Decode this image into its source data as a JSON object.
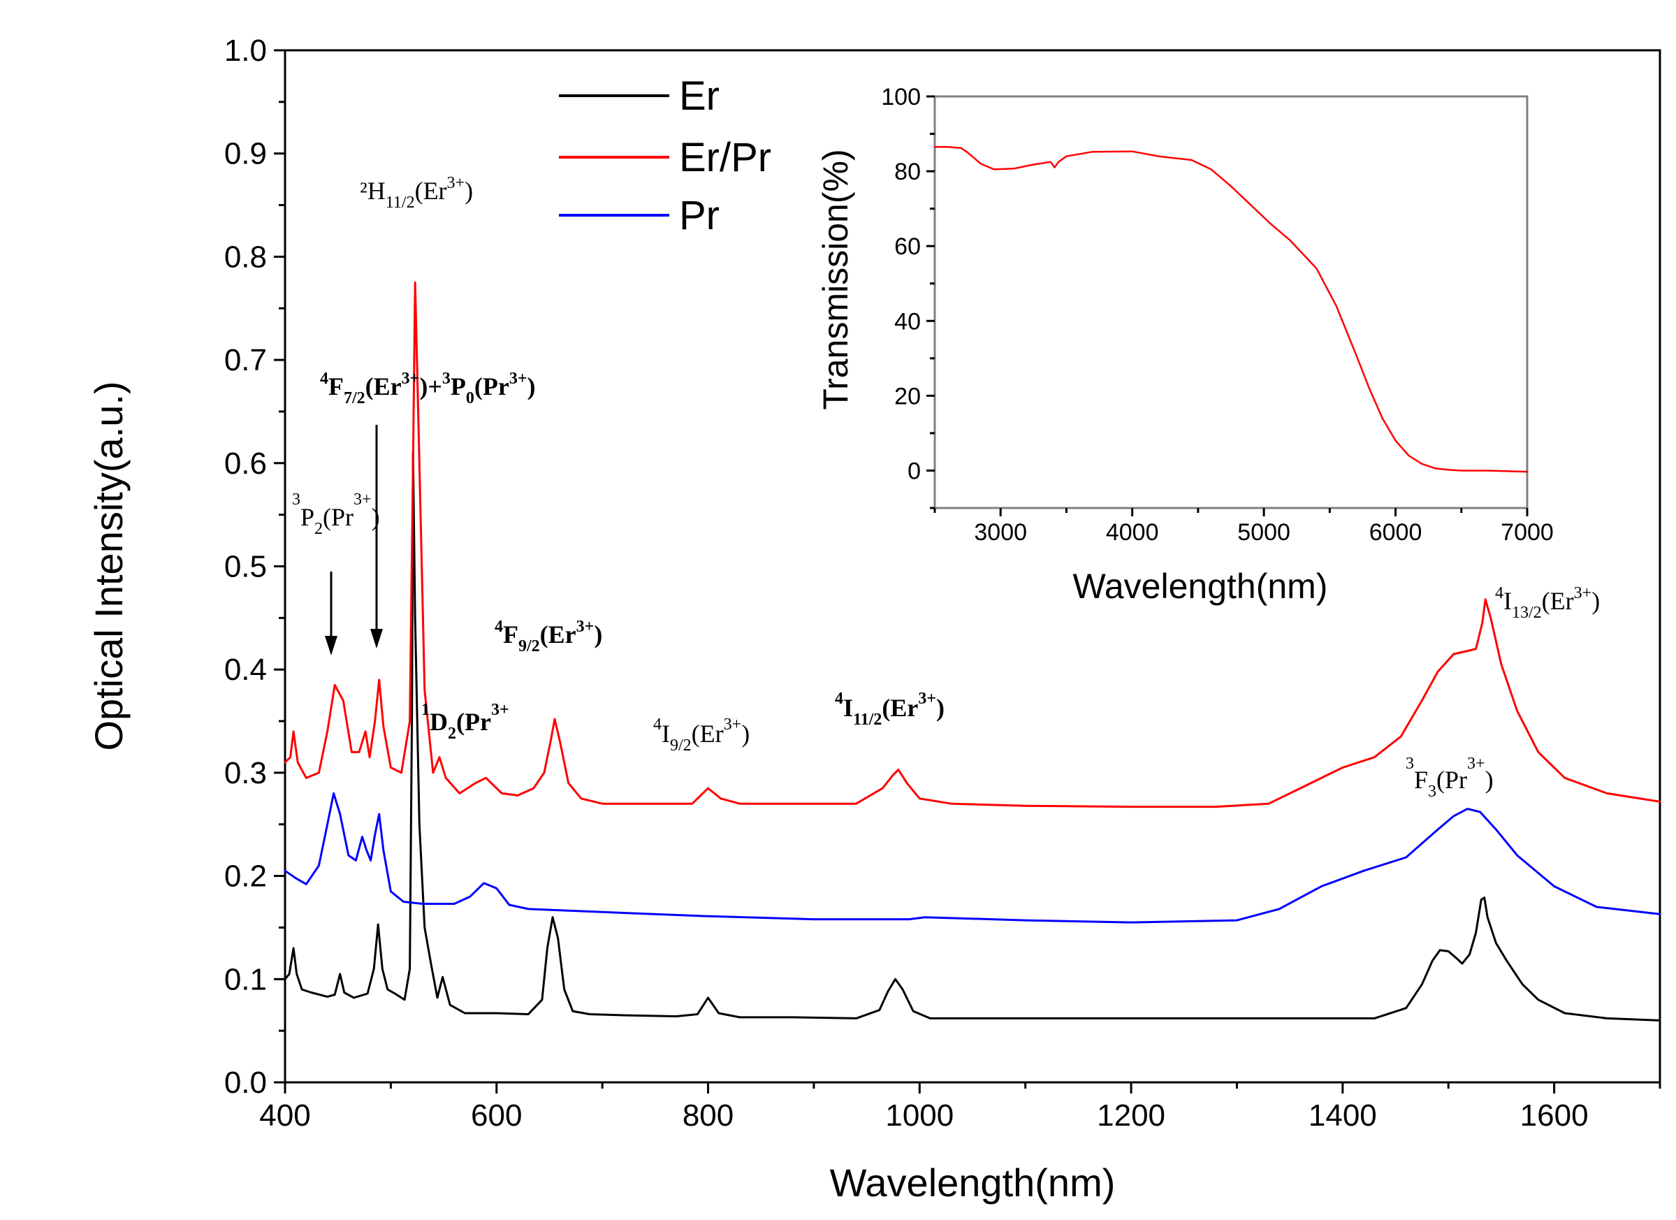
{
  "chart_data": [
    {
      "type": "line",
      "title": "",
      "xlabel": "Wavelength(nm)",
      "ylabel": "Optical Intensity(a.u.)",
      "xlim": [
        400,
        1700
      ],
      "ylim": [
        0.0,
        1.0
      ],
      "xticks": [
        400,
        600,
        800,
        1000,
        1200,
        1400,
        1600
      ],
      "xtick_labels": [
        "400",
        "600",
        "800",
        "1000",
        "1200",
        "1400",
        "1600"
      ],
      "yticks": [
        0.0,
        0.1,
        0.2,
        0.3,
        0.4,
        0.5,
        0.6,
        0.7,
        0.8,
        0.9,
        1.0
      ],
      "ytick_labels": [
        "0.0",
        "0.1",
        "0.2",
        "0.3",
        "0.4",
        "0.5",
        "0.6",
        "0.7",
        "0.8",
        "0.9",
        "1.0"
      ],
      "legend": {
        "position": "top-center",
        "entries": [
          "Er",
          "Er/Pr",
          "Pr"
        ]
      },
      "series": [
        {
          "name": "Er",
          "color": "#000000",
          "x": [
            400,
            404,
            408,
            411,
            416,
            425,
            440,
            447,
            452,
            456,
            465,
            478,
            484,
            488,
            492,
            497,
            504,
            513,
            518,
            520,
            521,
            523,
            527,
            532,
            538,
            544,
            549,
            556,
            570,
            600,
            630,
            643,
            648,
            653,
            658,
            664,
            672,
            688,
            720,
            770,
            790,
            800,
            810,
            830,
            880,
            940,
            962,
            970,
            977,
            984,
            994,
            1010,
            1060,
            1150,
            1250,
            1350,
            1430,
            1460,
            1475,
            1485,
            1492,
            1500,
            1508,
            1513,
            1520,
            1526,
            1531,
            1534,
            1537,
            1545,
            1555,
            1570,
            1585,
            1610,
            1650,
            1700
          ],
          "y": [
            0.1,
            0.105,
            0.13,
            0.105,
            0.09,
            0.087,
            0.083,
            0.085,
            0.105,
            0.087,
            0.082,
            0.086,
            0.11,
            0.153,
            0.11,
            0.09,
            0.086,
            0.08,
            0.11,
            0.36,
            0.61,
            0.45,
            0.25,
            0.15,
            0.115,
            0.082,
            0.102,
            0.075,
            0.067,
            0.067,
            0.066,
            0.08,
            0.13,
            0.16,
            0.14,
            0.09,
            0.069,
            0.066,
            0.065,
            0.064,
            0.066,
            0.082,
            0.067,
            0.063,
            0.063,
            0.062,
            0.07,
            0.088,
            0.1,
            0.09,
            0.069,
            0.062,
            0.062,
            0.062,
            0.062,
            0.062,
            0.062,
            0.072,
            0.095,
            0.118,
            0.128,
            0.127,
            0.12,
            0.115,
            0.124,
            0.145,
            0.177,
            0.179,
            0.16,
            0.135,
            0.118,
            0.095,
            0.08,
            0.067,
            0.062,
            0.06
          ]
        },
        {
          "name": "Er/Pr",
          "color": "#ff0000",
          "x": [
            400,
            405,
            408,
            412,
            420,
            432,
            440,
            447,
            455,
            463,
            470,
            476,
            480,
            485,
            489,
            493,
            500,
            510,
            518,
            521,
            523,
            527,
            532,
            540,
            546,
            552,
            565,
            580,
            590,
            605,
            620,
            635,
            645,
            651,
            655,
            660,
            668,
            680,
            700,
            750,
            785,
            800,
            812,
            830,
            880,
            940,
            965,
            975,
            980,
            988,
            1000,
            1030,
            1100,
            1200,
            1280,
            1330,
            1360,
            1400,
            1430,
            1455,
            1475,
            1490,
            1505,
            1518,
            1526,
            1532,
            1535,
            1540,
            1550,
            1565,
            1585,
            1610,
            1650,
            1700
          ],
          "y": [
            0.31,
            0.315,
            0.34,
            0.31,
            0.295,
            0.3,
            0.34,
            0.385,
            0.37,
            0.32,
            0.32,
            0.34,
            0.315,
            0.35,
            0.39,
            0.345,
            0.305,
            0.3,
            0.35,
            0.6,
            0.775,
            0.6,
            0.38,
            0.3,
            0.315,
            0.295,
            0.28,
            0.29,
            0.295,
            0.28,
            0.278,
            0.285,
            0.3,
            0.33,
            0.352,
            0.33,
            0.29,
            0.275,
            0.27,
            0.27,
            0.27,
            0.285,
            0.275,
            0.27,
            0.27,
            0.27,
            0.285,
            0.298,
            0.303,
            0.29,
            0.275,
            0.27,
            0.268,
            0.267,
            0.267,
            0.27,
            0.285,
            0.305,
            0.315,
            0.335,
            0.37,
            0.398,
            0.415,
            0.418,
            0.42,
            0.445,
            0.468,
            0.45,
            0.405,
            0.36,
            0.32,
            0.295,
            0.28,
            0.272
          ]
        },
        {
          "name": "Pr",
          "color": "#0000ff",
          "x": [
            400,
            410,
            420,
            432,
            440,
            446,
            452,
            460,
            467,
            473,
            477,
            481,
            485,
            489,
            493,
            500,
            512,
            530,
            560,
            575,
            588,
            600,
            612,
            630,
            700,
            800,
            900,
            990,
            1005,
            1100,
            1200,
            1300,
            1340,
            1380,
            1420,
            1460,
            1490,
            1505,
            1518,
            1530,
            1545,
            1565,
            1600,
            1640,
            1700
          ],
          "y": [
            0.205,
            0.198,
            0.192,
            0.21,
            0.25,
            0.28,
            0.26,
            0.22,
            0.215,
            0.238,
            0.225,
            0.215,
            0.24,
            0.26,
            0.225,
            0.185,
            0.175,
            0.173,
            0.173,
            0.18,
            0.193,
            0.188,
            0.172,
            0.168,
            0.165,
            0.161,
            0.158,
            0.158,
            0.16,
            0.157,
            0.155,
            0.157,
            0.168,
            0.19,
            0.205,
            0.218,
            0.245,
            0.258,
            0.265,
            0.262,
            0.245,
            0.22,
            0.19,
            0.17,
            0.163
          ]
        }
      ],
      "annotations": [
        {
          "id": "ann-2h11",
          "text": "2H11/2(Er3+)"
        },
        {
          "id": "ann-4f72",
          "text": "4F7/2(Er3+)+3P0(Pr3+)"
        },
        {
          "id": "ann-3p2",
          "text": "3P2(Pr3+)"
        },
        {
          "id": "ann-4f92",
          "text": "4F9/2(Er3+)"
        },
        {
          "id": "ann-1d2",
          "text": "1D2(Pr3+)"
        },
        {
          "id": "ann-4i92",
          "text": "4I9/2(Er3+)"
        },
        {
          "id": "ann-4i112",
          "text": "4I11/2(Er3+)"
        },
        {
          "id": "ann-4i132",
          "text": "4I13/2(Er3+)"
        },
        {
          "id": "ann-3f3",
          "text": "3F3(Pr3+)"
        }
      ]
    },
    {
      "type": "line",
      "title": "",
      "xlabel": "Wavelength(nm)",
      "ylabel": "Transmission(%)",
      "xlim": [
        2500,
        7000
      ],
      "ylim": [
        -10,
        100
      ],
      "xticks": [
        3000,
        4000,
        5000,
        6000,
        7000
      ],
      "xtick_labels": [
        "3000",
        "4000",
        "5000",
        "6000",
        "7000"
      ],
      "yticks": [
        0,
        20,
        40,
        60,
        80,
        100
      ],
      "ytick_labels": [
        "0",
        "20",
        "40",
        "60",
        "80",
        "100"
      ],
      "series": [
        {
          "name": "Transmission",
          "color": "#ff0000",
          "x": [
            2500,
            2600,
            2700,
            2750,
            2850,
            2950,
            3100,
            3250,
            3380,
            3410,
            3440,
            3500,
            3700,
            4000,
            4200,
            4450,
            4600,
            4750,
            4900,
            5050,
            5200,
            5400,
            5550,
            5700,
            5800,
            5900,
            6000,
            6100,
            6200,
            6300,
            6400,
            6500,
            6700,
            7000
          ],
          "y": [
            86.5,
            86.5,
            86.2,
            85,
            82,
            80.5,
            80.7,
            81.8,
            82.5,
            81,
            82.5,
            84,
            85.2,
            85.3,
            84,
            83,
            80.5,
            76,
            71,
            66,
            61.5,
            54,
            44,
            31,
            22,
            14,
            8,
            4,
            1.8,
            0.6,
            0.2,
            0,
            0,
            -0.3
          ]
        }
      ]
    }
  ]
}
